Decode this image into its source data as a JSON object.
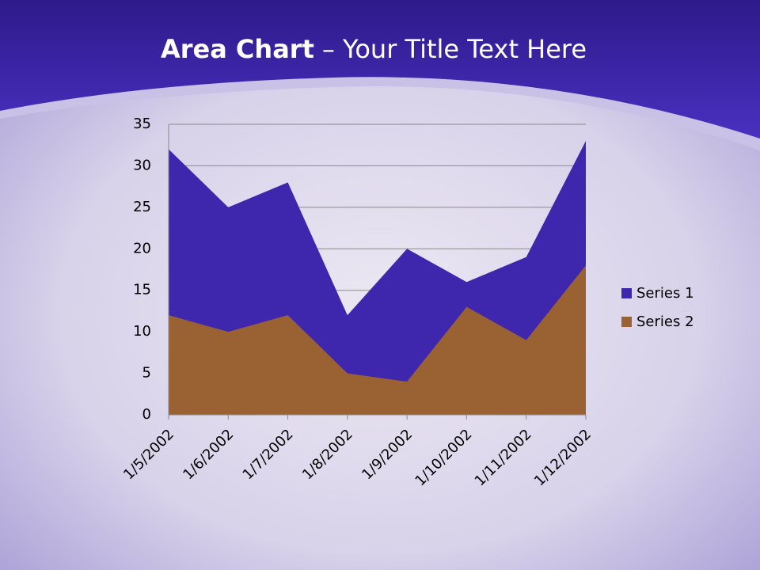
{
  "chart_data": {
    "type": "area",
    "title": [
      "Area Chart",
      "– Your Title Text Here"
    ],
    "categories": [
      "1/5/2002",
      "1/6/2002",
      "1/7/2002",
      "1/8/2002",
      "1/9/2002",
      "1/10/2002",
      "1/11/2002",
      "1/12/2002"
    ],
    "series": [
      {
        "name": "Series 1",
        "color": "#3f27ad",
        "values": [
          32,
          25,
          28,
          12,
          20,
          16,
          19,
          33
        ]
      },
      {
        "name": "Series 2",
        "color": "#9a6232",
        "values": [
          12,
          10,
          12,
          5,
          4,
          13,
          9,
          18
        ]
      }
    ],
    "ylim": [
      0,
      35
    ],
    "yticks": [
      0,
      5,
      10,
      15,
      20,
      25,
      30,
      35
    ],
    "grid": true,
    "legend": "right"
  }
}
